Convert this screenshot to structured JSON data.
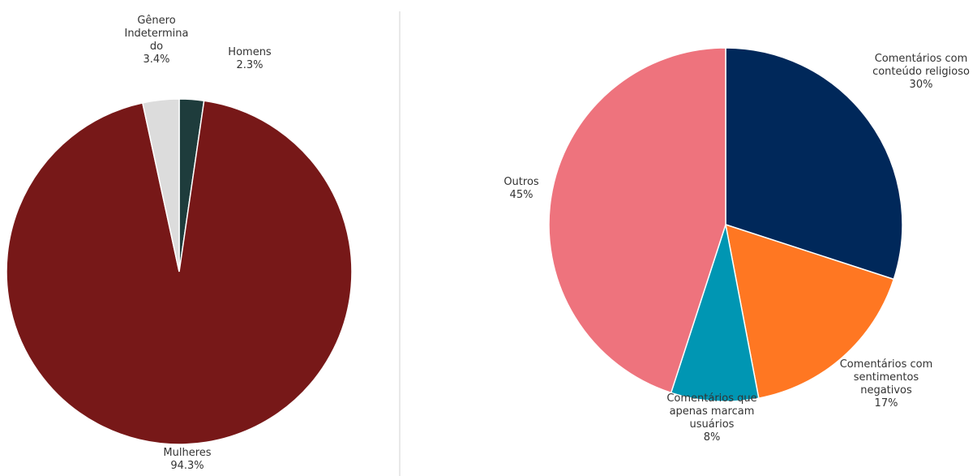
{
  "chart_data": [
    {
      "type": "pie",
      "title": "",
      "start_angle_deg": 0,
      "direction": "clockwise",
      "slices": [
        {
          "label": [
            "Homens"
          ],
          "value": 2.3,
          "display": "2.3%",
          "color": "#1e3c3c"
        },
        {
          "label": [
            "Mulheres"
          ],
          "value": 94.3,
          "display": "94.3%",
          "color": "#771818"
        },
        {
          "label": [
            "Gênero",
            "Indetermina",
            "do"
          ],
          "value": 3.4,
          "display": "3.4%",
          "color": "#dcdcdc"
        }
      ]
    },
    {
      "type": "pie",
      "title": "",
      "start_angle_deg": 0,
      "direction": "clockwise",
      "slices": [
        {
          "label": [
            "Comentários com",
            "conteúdo religioso"
          ],
          "value": 30,
          "display": "30%",
          "color": "#00285a"
        },
        {
          "label": [
            "Comentários com",
            "sentimentos",
            "negativos"
          ],
          "value": 17,
          "display": "17%",
          "color": "#ff7722"
        },
        {
          "label": [
            "Comentários que",
            "apenas marcam",
            "usuários"
          ],
          "value": 8,
          "display": "8%",
          "color": "#0096b3"
        },
        {
          "label": [
            "Outros"
          ],
          "value": 45,
          "display": "45%",
          "color": "#ee737d"
        }
      ]
    }
  ]
}
